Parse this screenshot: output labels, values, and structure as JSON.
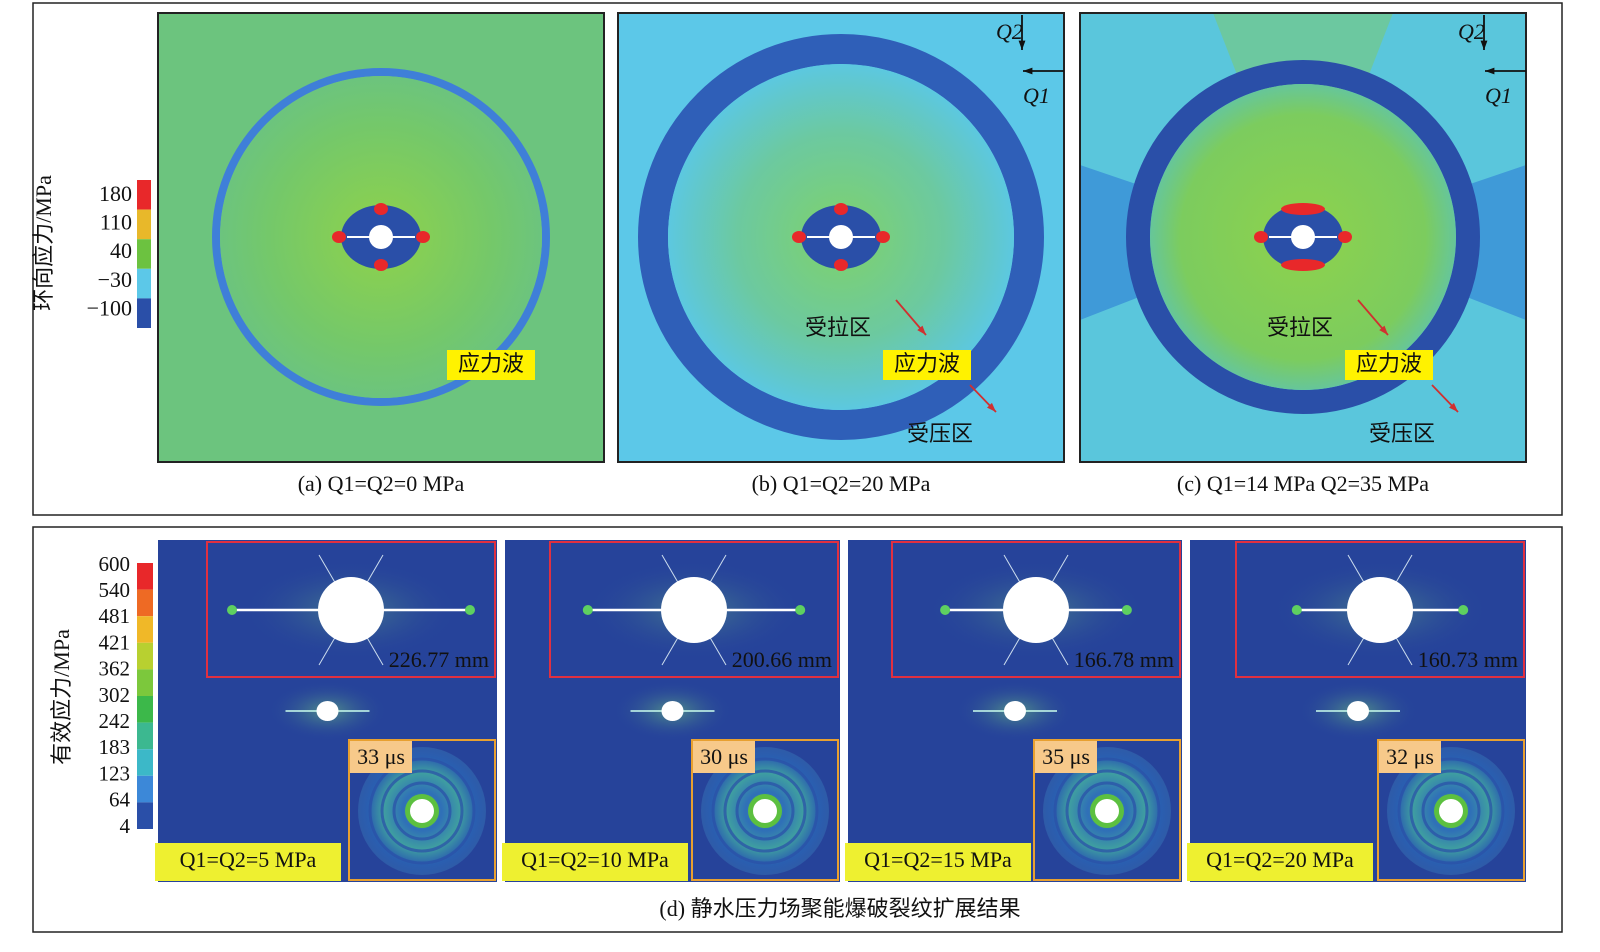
{
  "top": {
    "colorbar": {
      "title": "环向应力/MPa",
      "ticks": [
        "180",
        "110",
        "40",
        "−30",
        "−100"
      ]
    },
    "panels": [
      {
        "caption": "(a) Q1=Q2=0 MPa",
        "wave_label": "应力波"
      },
      {
        "caption": "(b) Q1=Q2=20 MPa",
        "q2": "Q2",
        "q1": "Q1",
        "tension_label": "受拉区",
        "wave_label": "应力波",
        "compression_label": "受压区"
      },
      {
        "caption": "(c) Q1=14 MPa Q2=35 MPa",
        "q2": "Q2",
        "q1": "Q1",
        "tension_label": "受拉区",
        "wave_label": "应力波",
        "compression_label": "受压区"
      }
    ]
  },
  "bottom": {
    "colorbar": {
      "title": "有效应力/MPa",
      "ticks": [
        "600",
        "540",
        "481",
        "421",
        "362",
        "302",
        "242",
        "183",
        "123",
        "64",
        "4"
      ]
    },
    "panels": [
      {
        "crack_length": "226.77 mm",
        "time": "33 μs",
        "condition": "Q1=Q2=5 MPa"
      },
      {
        "crack_length": "200.66 mm",
        "time": "30 μs",
        "condition": "Q1=Q2=10 MPa"
      },
      {
        "crack_length": "166.78 mm",
        "time": "35 μs",
        "condition": "Q1=Q2=15 MPa"
      },
      {
        "crack_length": "160.73 mm",
        "time": "32 μs",
        "condition": "Q1=Q2=20 MPa"
      }
    ],
    "caption": "(d) 静水压力场聚能爆破裂纹扩展结果"
  }
}
